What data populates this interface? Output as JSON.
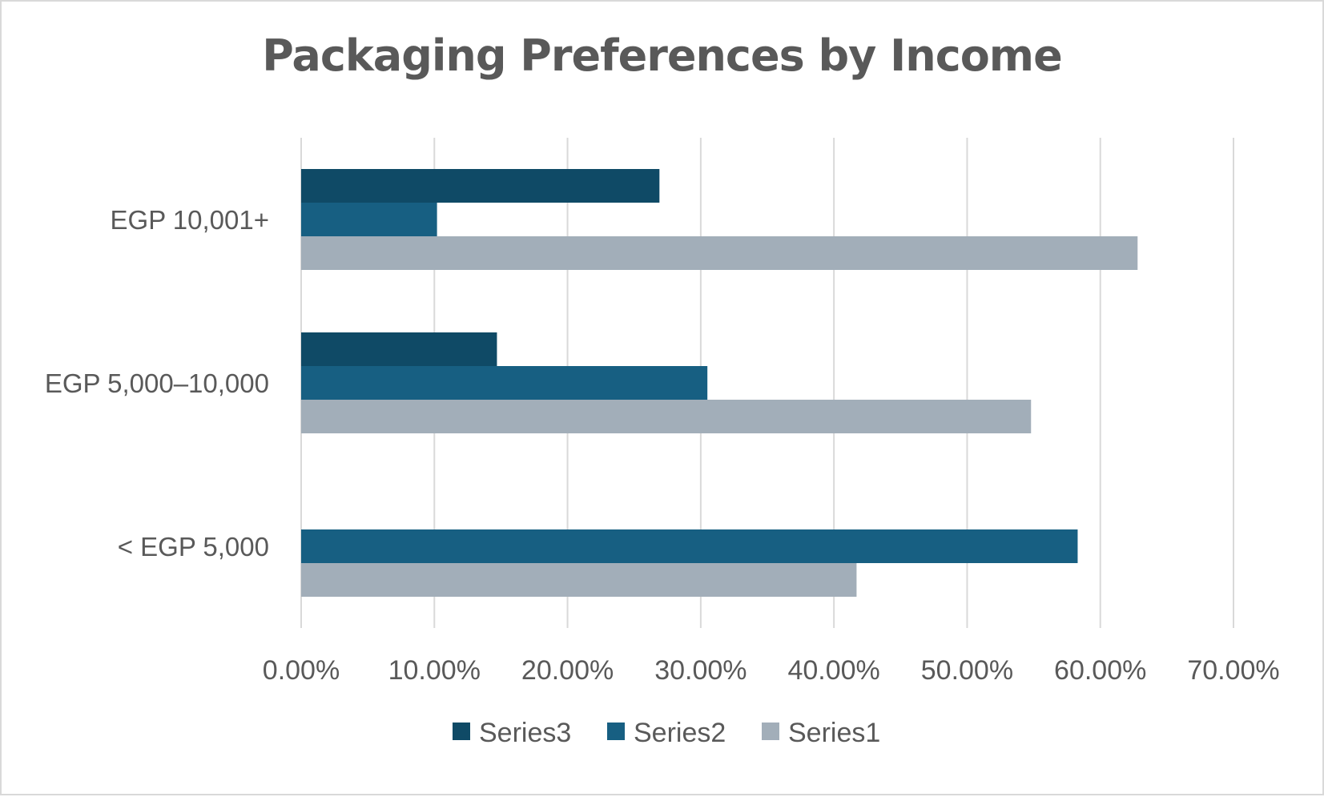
{
  "chart_data": {
    "type": "bar",
    "orientation": "horizontal",
    "title": "Packaging Preferences by Income",
    "categories": [
      "< EGP 5,000",
      "EGP 5,000–10,000",
      "EGP 10,001+"
    ],
    "series": [
      {
        "name": "Series1",
        "color": "#a2aeb9",
        "values": [
          41.7,
          54.8,
          62.8
        ]
      },
      {
        "name": "Series2",
        "color": "#175f82",
        "values": [
          58.3,
          30.5,
          10.2
        ]
      },
      {
        "name": "Series3",
        "color": "#0f4a66",
        "values": [
          0,
          14.7,
          26.9
        ]
      }
    ],
    "xlim": [
      0,
      70
    ],
    "x_ticks": [
      "0.00%",
      "10.00%",
      "20.00%",
      "30.00%",
      "40.00%",
      "50.00%",
      "60.00%",
      "70.00%"
    ],
    "grid": true,
    "legend_position": "bottom",
    "legend_order": [
      "Series3",
      "Series2",
      "Series1"
    ]
  }
}
